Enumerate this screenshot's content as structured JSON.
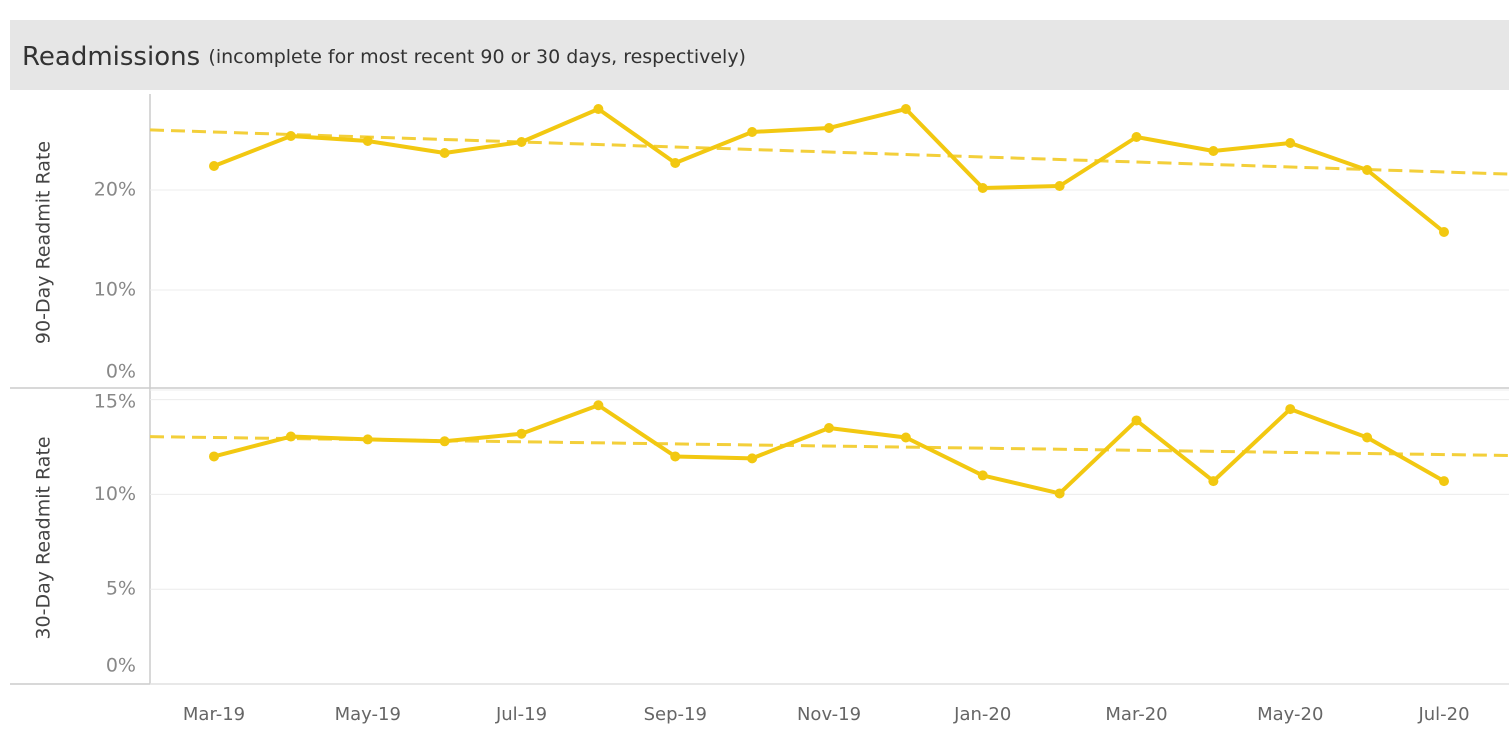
{
  "header": {
    "title": "Readmissions",
    "subtitle": "(incomplete for most recent 90 or 30 days, respectively)"
  },
  "chart_data": [
    {
      "type": "line",
      "ylabel": "90-Day Readmit Rate",
      "ylim": [
        0,
        29.5
      ],
      "yticks": [
        {
          "value": 0,
          "label": "0%"
        },
        {
          "value": 10,
          "label": "10%"
        },
        {
          "value": 20,
          "label": "20%"
        }
      ],
      "grid": true,
      "series": [
        {
          "color": "#f2c811",
          "values": [
            22.4,
            25.4,
            24.9,
            23.7,
            24.8,
            28.1,
            22.7,
            25.8,
            26.2,
            28.1,
            20.2,
            20.4,
            25.3,
            23.9,
            24.7,
            22.0,
            15.8
          ]
        }
      ],
      "trend": {
        "color": "#f3cf3a",
        "values": [
          25.8,
          21.8
        ]
      }
    },
    {
      "type": "line",
      "ylabel": "30-Day Readmit Rate",
      "ylim": [
        0,
        15.4
      ],
      "yticks": [
        {
          "value": 0,
          "label": "0%"
        },
        {
          "value": 5,
          "label": "5%"
        },
        {
          "value": 10,
          "label": "10%"
        },
        {
          "value": 15,
          "label": "15%"
        }
      ],
      "grid": true,
      "categories": [
        "Mar-19",
        null,
        "May-19",
        null,
        "Jul-19",
        null,
        "Sep-19",
        null,
        "Nov-19",
        null,
        "Jan-20",
        null,
        "Mar-20",
        null,
        "May-20",
        null,
        "Jul-20"
      ],
      "series": [
        {
          "color": "#f2c811",
          "values": [
            12.0,
            13.05,
            12.9,
            12.8,
            13.2,
            14.7,
            12.0,
            11.9,
            13.5,
            13.0,
            11.0,
            10.05,
            13.9,
            10.7,
            14.5,
            13.0,
            10.7
          ]
        }
      ],
      "trend": {
        "color": "#f3cf3a",
        "values": [
          13.0,
          12.1
        ]
      }
    }
  ]
}
